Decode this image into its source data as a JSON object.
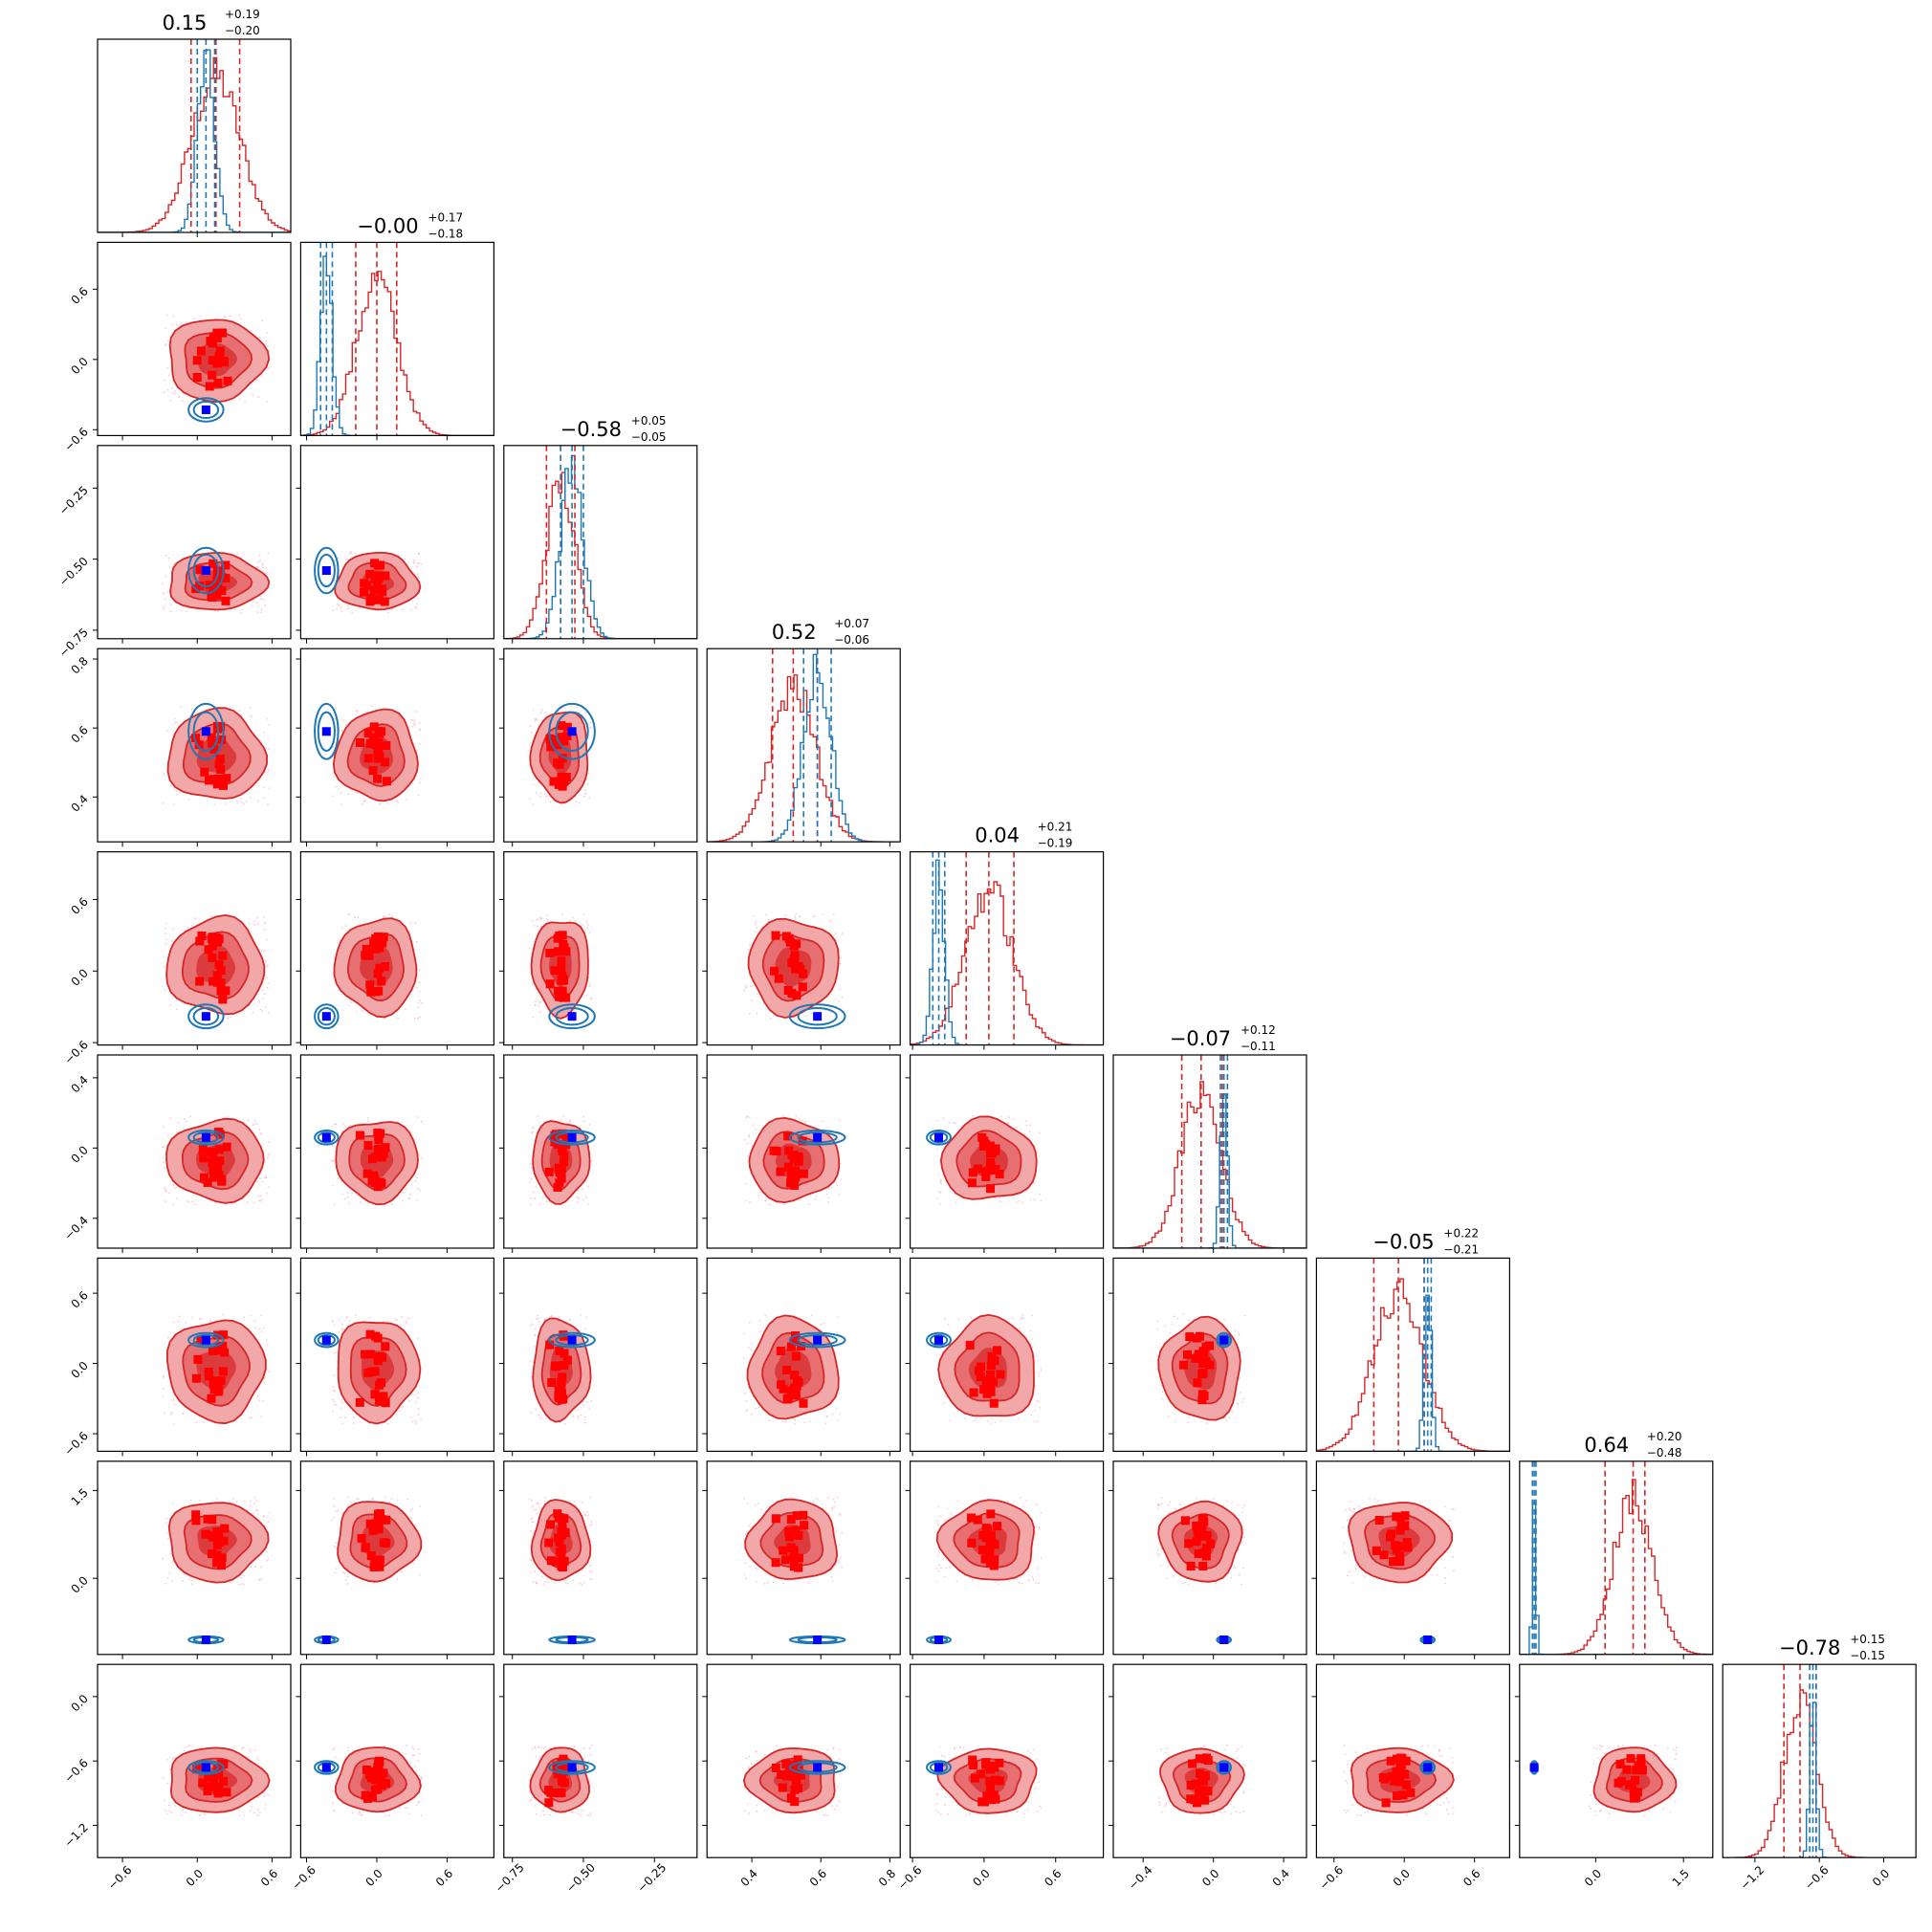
{
  "colors": {
    "red": "#d62728",
    "red_marker": "#ff0000",
    "blue": "#1f77b4",
    "blue_marker": "#0000ff",
    "red_fill_outer": "#f2a7a8",
    "red_fill_inner": "#db3b3d"
  },
  "chart_data": {
    "type": "corner",
    "n_params": 9,
    "titles": [
      {
        "main": "0.15",
        "plus": "+0.19",
        "minus": "−0.20"
      },
      {
        "main": "−0.00",
        "plus": "+0.17",
        "minus": "−0.18"
      },
      {
        "main": "−0.58",
        "plus": "+0.05",
        "minus": "−0.05"
      },
      {
        "main": "0.52",
        "plus": "+0.07",
        "minus": "−0.06"
      },
      {
        "main": "0.04",
        "plus": "+0.21",
        "minus": "−0.19"
      },
      {
        "main": "−0.07",
        "plus": "+0.12",
        "minus": "−0.11"
      },
      {
        "main": "−0.05",
        "plus": "+0.22",
        "minus": "−0.21"
      },
      {
        "main": "0.64",
        "plus": "+0.20",
        "minus": "−0.48"
      },
      {
        "main": "−0.78",
        "plus": "+0.15",
        "minus": "−0.15"
      }
    ],
    "params": [
      {
        "range": [
          -0.8,
          0.75
        ],
        "ticks": [
          -0.6,
          0.0,
          0.6
        ],
        "tick_labels": [
          "−0.6",
          "0.0",
          "0.6"
        ]
      },
      {
        "range": [
          -0.65,
          1.0
        ],
        "ticks": [
          -0.6,
          0.0,
          0.6
        ],
        "tick_labels": [
          "−0.6",
          "0.0",
          "0.6"
        ]
      },
      {
        "range": [
          -0.78,
          -0.1
        ],
        "ticks": [
          -0.75,
          -0.5,
          -0.25
        ],
        "tick_labels": [
          "−0.75",
          "−0.50",
          "−0.25"
        ]
      },
      {
        "range": [
          0.27,
          0.83
        ],
        "ticks": [
          0.4,
          0.6,
          0.8
        ],
        "tick_labels": [
          "0.4",
          "0.6",
          "0.8"
        ]
      },
      {
        "range": [
          -0.62,
          1.0
        ],
        "ticks": [
          -0.6,
          0.0,
          0.6
        ],
        "tick_labels": [
          "−0.6",
          "0.0",
          "0.6"
        ]
      },
      {
        "range": [
          -0.57,
          0.53
        ],
        "ticks": [
          -0.4,
          0.0,
          0.4
        ],
        "tick_labels": [
          "−0.4",
          "0.0",
          "0.4"
        ]
      },
      {
        "range": [
          -0.75,
          0.9
        ],
        "ticks": [
          -0.6,
          0.0,
          0.6
        ],
        "tick_labels": [
          "−0.6",
          "0.0",
          "0.6"
        ]
      },
      {
        "range": [
          -1.3,
          2.0
        ],
        "ticks": [
          0.0,
          1.5
        ],
        "tick_labels": [
          "0.0",
          "1.5"
        ]
      },
      {
        "range": [
          -1.5,
          0.3
        ],
        "ticks": [
          -1.2,
          -0.6,
          0.0
        ],
        "tick_labels": [
          "−1.2",
          "−0.6",
          "0.0"
        ]
      }
    ],
    "red_model": {
      "median": [
        0.15,
        0.0,
        -0.58,
        0.52,
        0.04,
        -0.07,
        -0.05,
        0.64,
        -0.78
      ],
      "sigma_minus": [
        0.2,
        0.18,
        0.05,
        0.06,
        0.19,
        0.11,
        0.21,
        0.48,
        0.15
      ],
      "sigma_plus": [
        0.19,
        0.17,
        0.05,
        0.07,
        0.21,
        0.12,
        0.22,
        0.2,
        0.15
      ]
    },
    "blue_model": {
      "median": [
        0.07,
        -0.43,
        -0.54,
        0.59,
        -0.38,
        0.06,
        0.2,
        -1.05,
        -0.66
      ],
      "sigma": [
        0.07,
        0.05,
        0.04,
        0.04,
        0.05,
        0.02,
        0.03,
        0.03,
        0.03
      ]
    },
    "red_markers": [
      -0.62,
      -0.25,
      -0.1,
      0.05,
      0.1,
      0.2,
      0.35
    ],
    "blue_marker_note": "square at blue median"
  }
}
